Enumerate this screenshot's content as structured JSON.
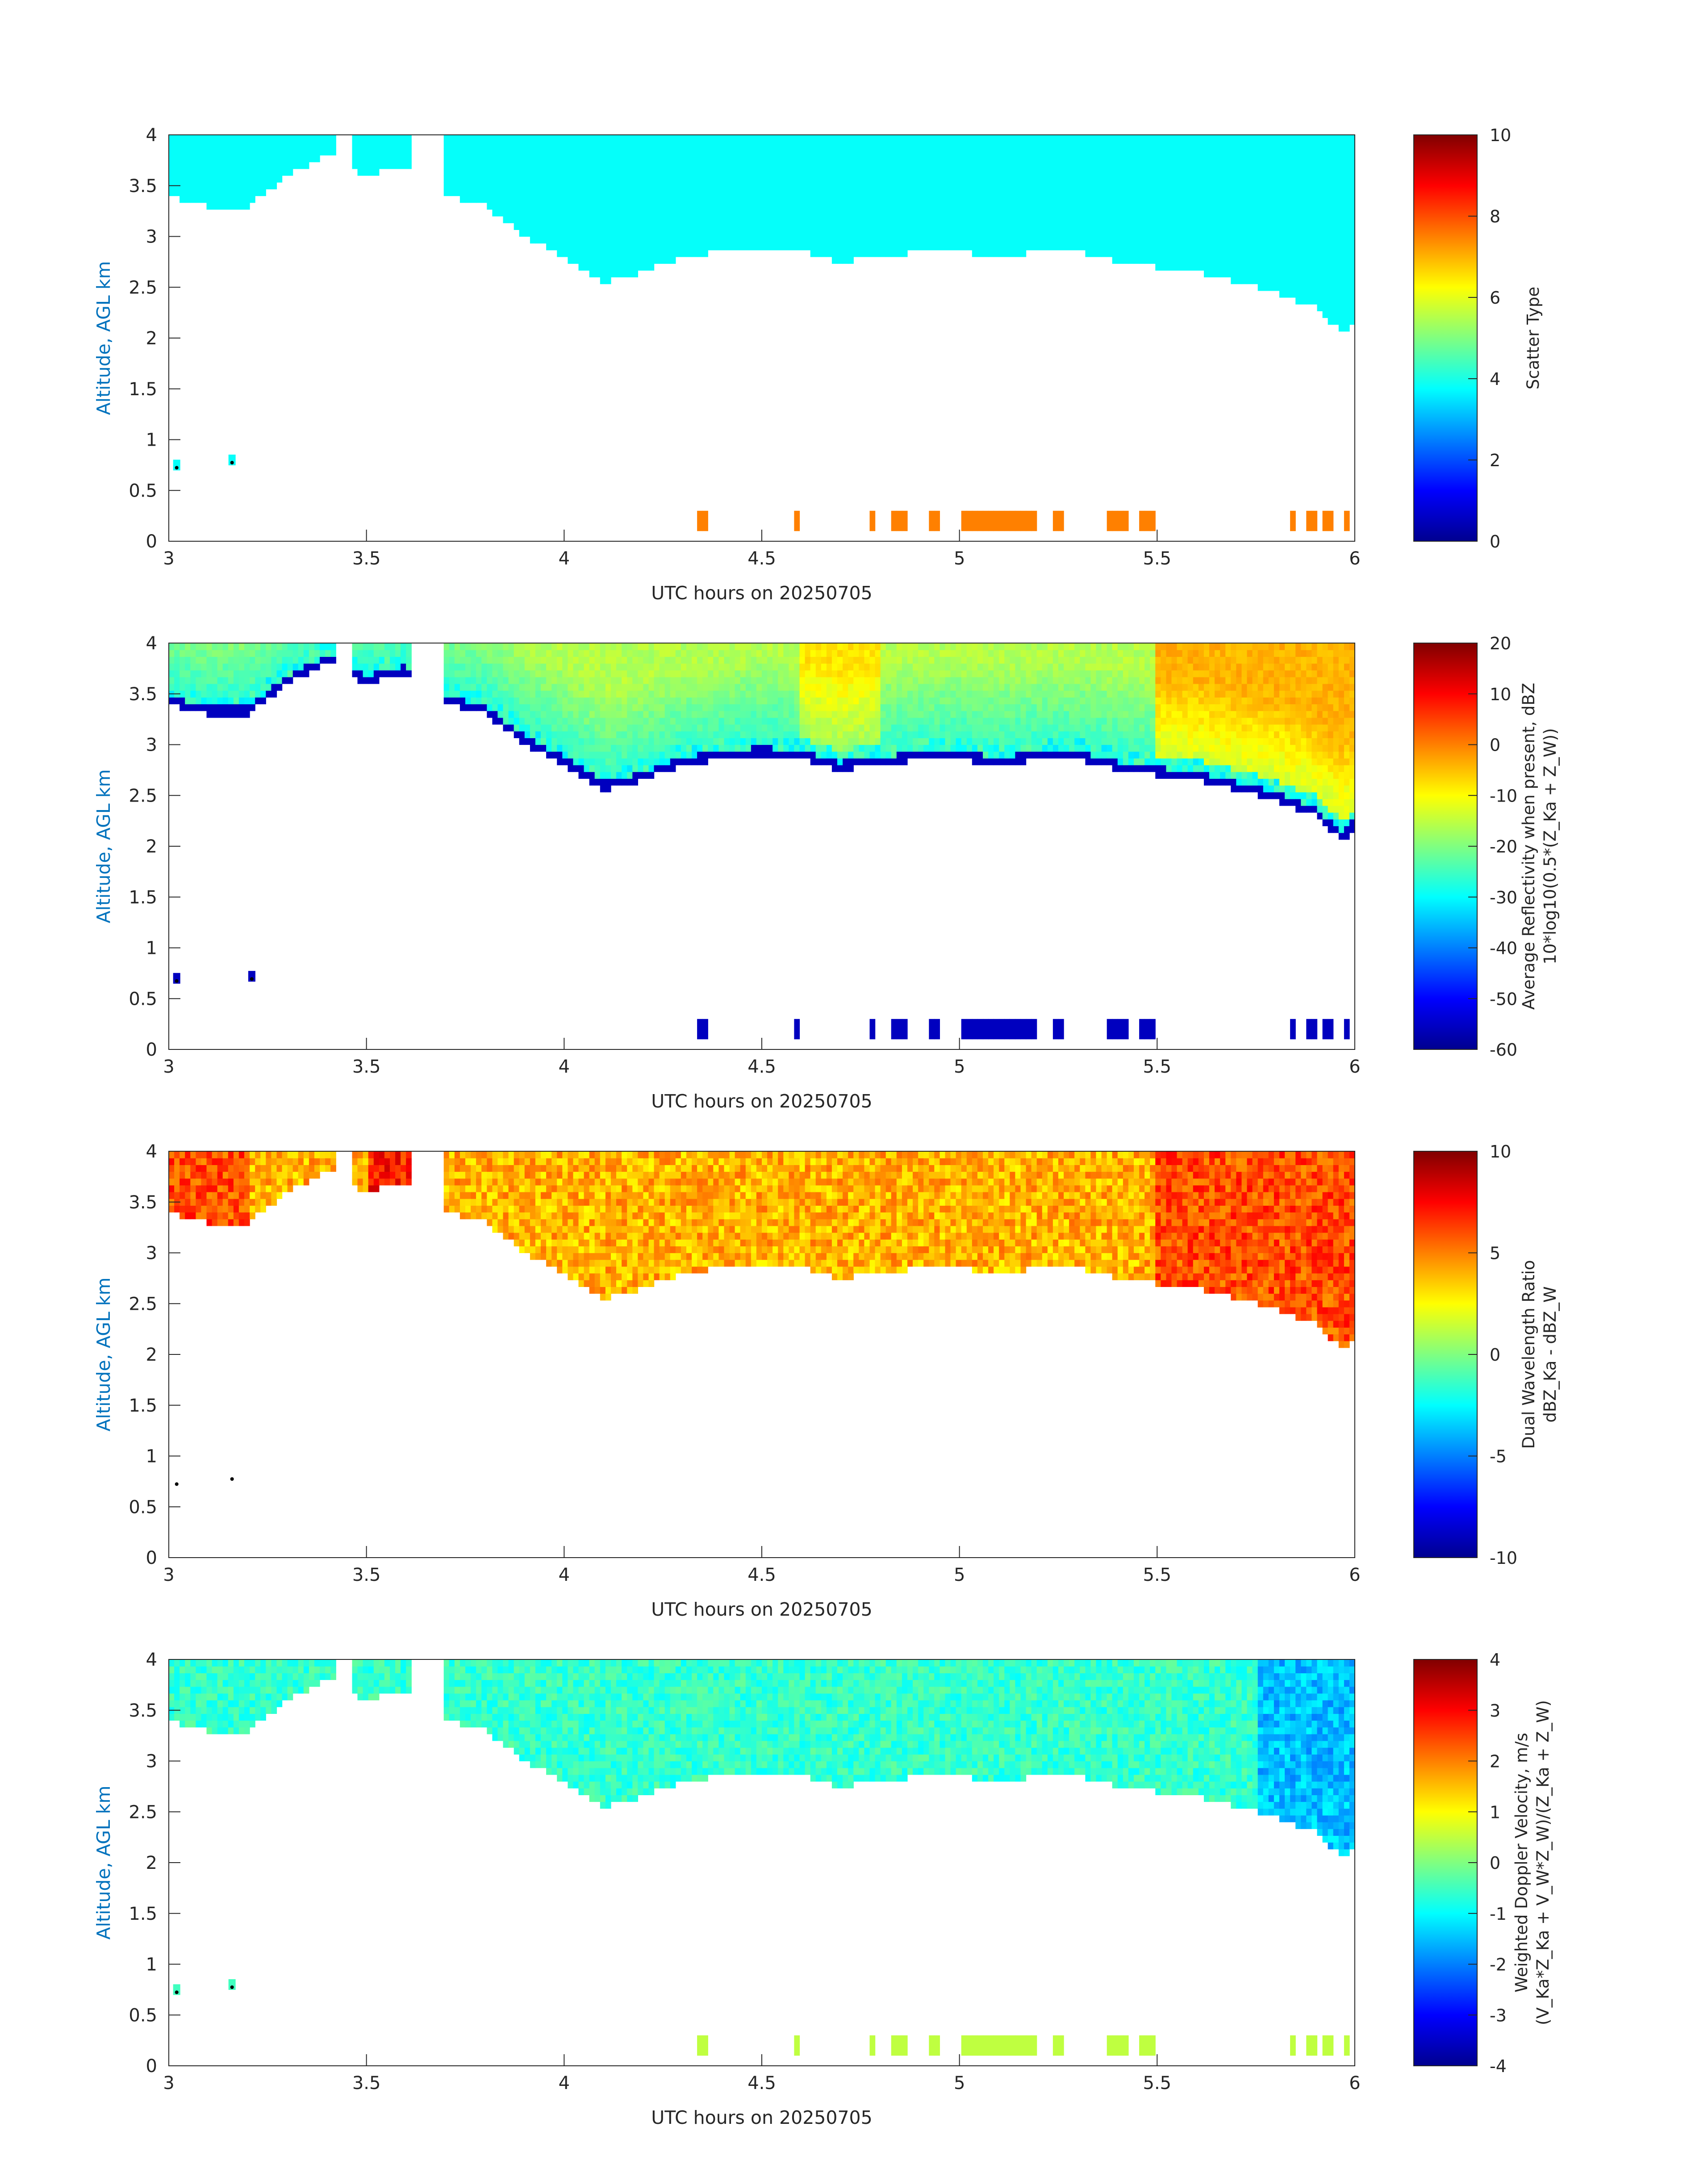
{
  "panel_1": {
    "ylabel": "Altitude, AGL km",
    "xlabel": "UTC hours on 20250705",
    "colorbar": {
      "label_line1": "Scatter Type",
      "label_line2": "",
      "ticks": [
        "0",
        "2",
        "4",
        "6",
        "8",
        "10"
      ]
    }
  },
  "panel_2": {
    "ylabel": "Altitude, AGL km",
    "xlabel": "UTC hours on 20250705",
    "colorbar": {
      "label_line1": "Average Reflectivity when present, dBZ",
      "label_line2": "10*log10(0.5*(Z_Ka + Z_W))",
      "ticks": [
        "-60",
        "-50",
        "-40",
        "-30",
        "-20",
        "-10",
        "0",
        "10",
        "20"
      ]
    }
  },
  "panel_3": {
    "ylabel": "Altitude, AGL km",
    "xlabel": "UTC hours on 20250705",
    "colorbar": {
      "label_line1": "Dual Wavelength Ratio",
      "label_line2": "dBZ_Ka - dBZ_W",
      "ticks": [
        "-10",
        "-5",
        "0",
        "5",
        "10"
      ]
    }
  },
  "panel_4": {
    "ylabel": "Altitude, AGL km",
    "xlabel": "UTC hours on 20250705",
    "colorbar": {
      "label_line1": "Weighted Doppler Velocity, m/s",
      "label_line2": "(V_Ka*Z_Ka + V_W*Z_W)/(Z_Ka + Z_W)",
      "ticks": [
        "-4",
        "-3",
        "-2",
        "-1",
        "0",
        "1",
        "2",
        "3",
        "4"
      ]
    }
  },
  "x_tick_labels": [
    "3",
    "3.5",
    "4",
    "4.5",
    "5",
    "5.5",
    "6"
  ],
  "y_tick_labels": [
    "0",
    "0.5",
    "1",
    "1.5",
    "2",
    "2.5",
    "3",
    "3.5",
    "4"
  ],
  "colors": {
    "axis_label": "#0072BD",
    "text": "#262626",
    "axis_line": "#262626"
  },
  "chart_data": [
    {
      "type": "heatmap",
      "title": "",
      "xlabel": "UTC hours on 20250705",
      "ylabel": "Altitude, AGL km",
      "xlim": [
        3,
        6
      ],
      "ylim": [
        0,
        4
      ],
      "colorbar_label": "Scatter Type",
      "clim": [
        0,
        10
      ],
      "colormap": "jet",
      "cloud_base_km": [
        [
          3.0,
          3.4
        ],
        [
          3.1,
          3.3
        ],
        [
          3.2,
          3.3
        ],
        [
          3.3,
          3.6
        ],
        [
          3.4,
          3.8
        ],
        [
          3.5,
          3.6
        ],
        [
          3.6,
          3.7
        ],
        [
          3.7,
          3.4
        ],
        [
          3.8,
          3.3
        ],
        [
          3.9,
          3.0
        ],
        [
          4.0,
          2.8
        ],
        [
          4.1,
          2.55
        ],
        [
          4.2,
          2.65
        ],
        [
          4.3,
          2.8
        ],
        [
          4.4,
          2.85
        ],
        [
          4.5,
          2.9
        ],
        [
          4.6,
          2.85
        ],
        [
          4.7,
          2.75
        ],
        [
          4.8,
          2.8
        ],
        [
          4.9,
          2.85
        ],
        [
          5.0,
          2.85
        ],
        [
          5.1,
          2.8
        ],
        [
          5.2,
          2.85
        ],
        [
          5.3,
          2.85
        ],
        [
          5.4,
          2.75
        ],
        [
          5.5,
          2.7
        ],
        [
          5.6,
          2.65
        ],
        [
          5.7,
          2.55
        ],
        [
          5.8,
          2.45
        ],
        [
          5.9,
          2.3
        ],
        [
          5.97,
          2.05
        ],
        [
          6.0,
          2.2
        ]
      ],
      "cloud_gaps_hours": [
        [
          3.42,
          3.46
        ],
        [
          3.62,
          3.69
        ]
      ],
      "cloud_value": 3.8,
      "low_echo_segments": [
        [
          4.33,
          4.37
        ],
        [
          4.58,
          4.6
        ],
        [
          4.77,
          4.79
        ],
        [
          4.83,
          4.87
        ],
        [
          4.92,
          4.95
        ],
        [
          5.0,
          5.2
        ],
        [
          5.24,
          5.26
        ],
        [
          5.37,
          5.43
        ],
        [
          5.46,
          5.49
        ],
        [
          5.83,
          5.85
        ],
        [
          5.88,
          5.9
        ],
        [
          5.92,
          5.95
        ],
        [
          5.97,
          5.99
        ]
      ],
      "low_echo_altitude_km": 0.25,
      "low_echo_value": 7.5,
      "isolated_echoes": [
        [
          3.02,
          0.75
        ],
        [
          3.16,
          0.8
        ]
      ]
    },
    {
      "type": "heatmap",
      "title": "",
      "xlabel": "UTC hours on 20250705",
      "ylabel": "Altitude, AGL km",
      "xlim": [
        3,
        6
      ],
      "ylim": [
        0,
        4
      ],
      "colorbar_label": "Average Reflectivity when present, dBZ",
      "clim": [
        -60,
        20
      ],
      "colormap": "jet",
      "cloud_top_values_dBZ": "-30 (early) to -5 (after 5.5 h)",
      "cloud_base_values_dBZ": -55,
      "low_echo_value": -55,
      "isolated_echoes": [
        [
          3.02,
          0.7
        ],
        [
          3.21,
          0.72
        ]
      ]
    },
    {
      "type": "heatmap",
      "title": "",
      "xlabel": "UTC hours on 20250705",
      "ylabel": "Altitude, AGL km",
      "xlim": [
        3,
        6
      ],
      "ylim": [
        0,
        4
      ],
      "colorbar_label": "Dual Wavelength Ratio",
      "clim": [
        -10,
        10
      ],
      "colormap": "jet",
      "typical_value": 3,
      "high_value_regions": [
        [
          3.0,
          3.2,
          5
        ],
        [
          3.5,
          3.6,
          7
        ],
        [
          5.5,
          6.0,
          5
        ]
      ]
    },
    {
      "type": "heatmap",
      "title": "",
      "xlabel": "UTC hours on 20250705",
      "ylabel": "Altitude, AGL km",
      "xlim": [
        3,
        6
      ],
      "ylim": [
        0,
        4
      ],
      "colorbar_label": "Weighted Doppler Velocity, m/s",
      "clim": [
        -4,
        4
      ],
      "colormap": "jet",
      "typical_value": -0.8,
      "downdraft_region_hours": [
        5.7,
        6.0
      ],
      "downdraft_value": -2.5,
      "low_echo_value": 0.5
    }
  ]
}
